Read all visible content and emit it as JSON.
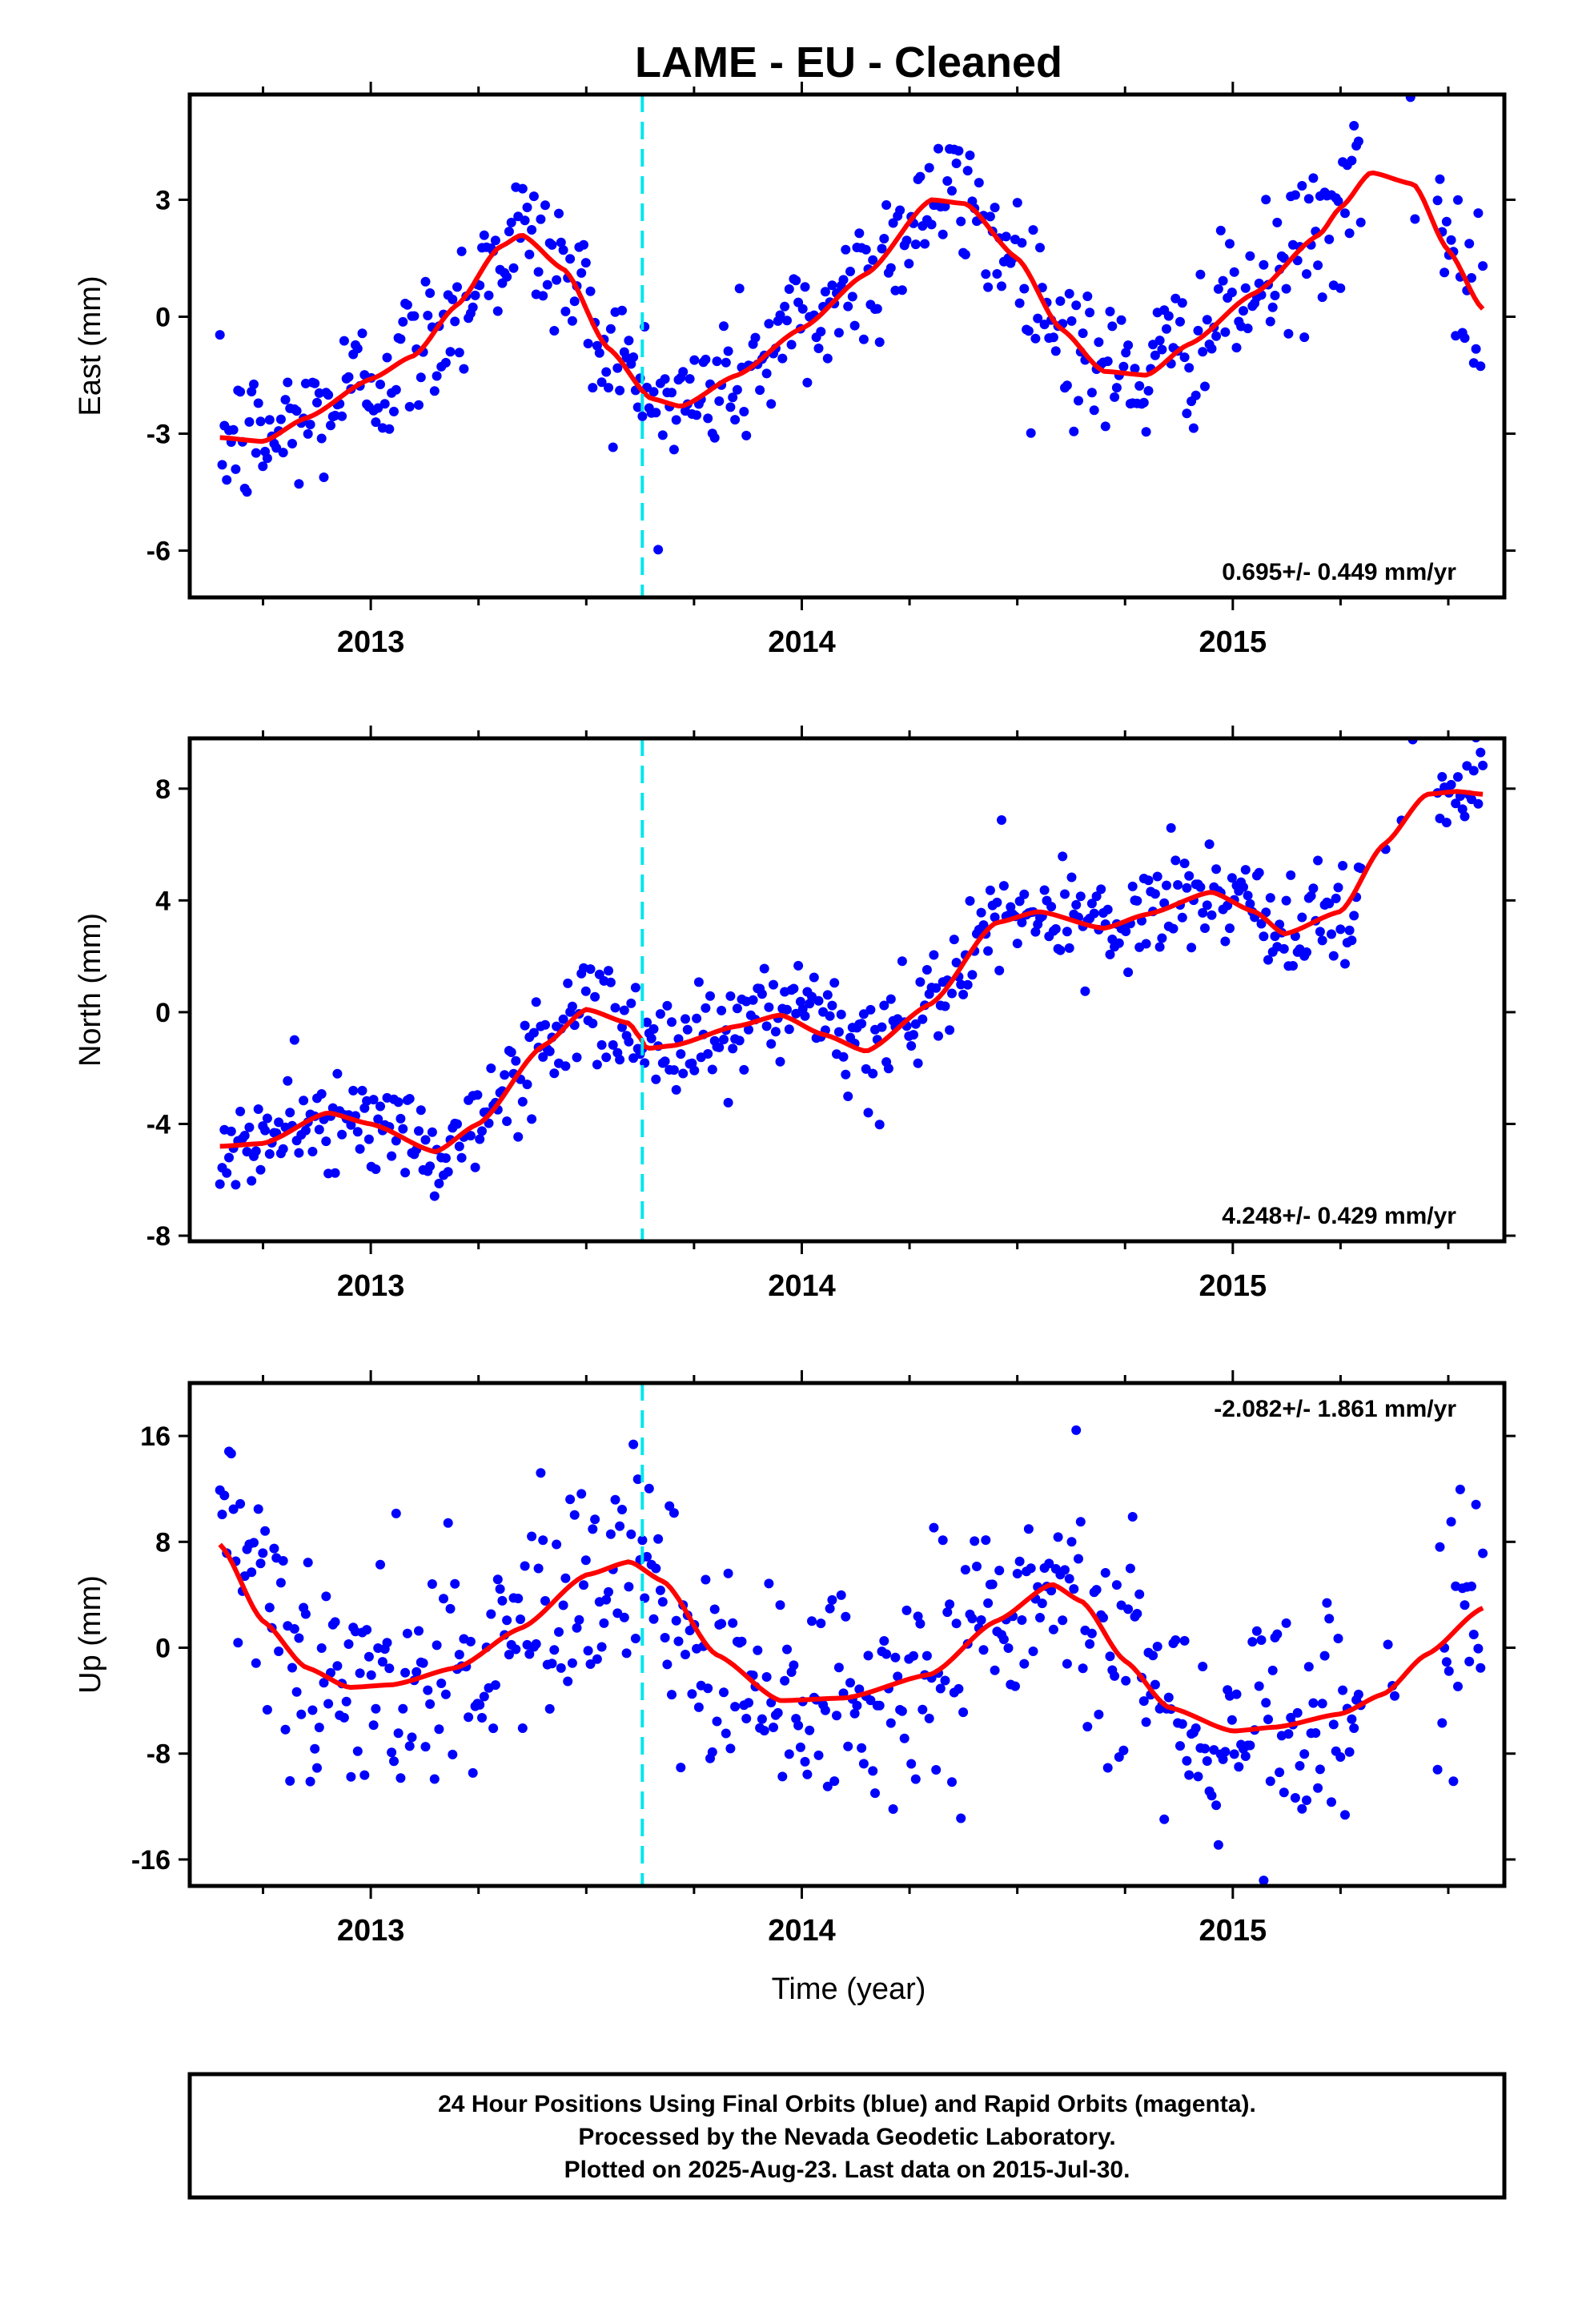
{
  "title": "LAME  - EU - Cleaned",
  "x_axis_label": "Time (year)",
  "footer": {
    "lines": [
      "24 Hour Positions Using Final Orbits (blue) and Rapid Orbits (magenta).",
      "Processed by the Nevada Geodetic Laboratory.",
      "Plotted on 2025-Aug-23. Last data on 2015-Jul-30."
    ]
  },
  "colors": {
    "points": "#0000ff",
    "fit_line": "#ff0000",
    "event_line": "#00e5ee",
    "frame": "#000000"
  },
  "chart_data": [
    {
      "type": "scatter",
      "name": "east",
      "ylabel": "East (mm)",
      "rate_label": "0.695+/- 0.449 mm/yr",
      "rate_position": "bottom-right",
      "xlim": [
        2012.58,
        2015.63
      ],
      "ylim": [
        -7.2,
        5.7
      ],
      "x_ticks": [
        2013,
        2014,
        2015
      ],
      "x_tick_labels": [
        "2013",
        "2014",
        "2015"
      ],
      "y_ticks": [
        -6,
        -3,
        0,
        3
      ],
      "y_tick_labels": [
        "-6",
        "-3",
        "0",
        "3"
      ],
      "event_year": 2013.63,
      "data_range": [
        2012.65,
        2015.58
      ],
      "fit": {
        "x": [
          2012.65,
          2012.75,
          2012.85,
          2013.0,
          2013.1,
          2013.2,
          2013.3,
          2013.35,
          2013.45,
          2013.55,
          2013.65,
          2013.72,
          2013.85,
          2014.0,
          2014.15,
          2014.3,
          2014.38,
          2014.5,
          2014.6,
          2014.7,
          2014.8,
          2014.9,
          2015.05,
          2015.2,
          2015.25,
          2015.32,
          2015.42,
          2015.5,
          2015.58
        ],
        "y": [
          -3.1,
          -3.2,
          -2.6,
          -1.6,
          -1.0,
          0.3,
          1.8,
          2.1,
          1.2,
          -0.8,
          -2.1,
          -2.3,
          -1.5,
          -0.3,
          1.1,
          3.0,
          2.9,
          1.5,
          -0.3,
          -1.4,
          -1.5,
          -0.7,
          0.6,
          2.1,
          2.8,
          3.7,
          3.4,
          1.7,
          0.2
        ]
      },
      "point_model": {
        "seasonal": 0,
        "noise": 0.95,
        "count": 560
      }
    },
    {
      "type": "scatter",
      "name": "north",
      "ylabel": "North (mm)",
      "rate_label": "4.248+/- 0.429 mm/yr",
      "rate_position": "bottom-right",
      "xlim": [
        2012.58,
        2015.63
      ],
      "ylim": [
        -8.2,
        9.8
      ],
      "x_ticks": [
        2013,
        2014,
        2015
      ],
      "x_tick_labels": [
        "2013",
        "2014",
        "2015"
      ],
      "y_ticks": [
        -8,
        -4,
        0,
        4,
        8
      ],
      "y_tick_labels": [
        "-8",
        "-4",
        "0",
        "4",
        "8"
      ],
      "event_year": 2013.63,
      "data_range": [
        2012.65,
        2015.58
      ],
      "fit": {
        "x": [
          2012.65,
          2012.75,
          2012.9,
          2013.0,
          2013.15,
          2013.25,
          2013.4,
          2013.5,
          2013.6,
          2013.62,
          2013.64,
          2013.7,
          2013.85,
          2013.95,
          2014.05,
          2014.15,
          2014.3,
          2014.45,
          2014.55,
          2014.7,
          2014.8,
          2014.95,
          2015.05,
          2015.12,
          2015.25,
          2015.35,
          2015.45,
          2015.52,
          2015.58
        ],
        "y": [
          -4.8,
          -4.7,
          -3.6,
          -4.0,
          -5.0,
          -4.0,
          -1.2,
          0.1,
          -0.4,
          -0.8,
          -1.3,
          -1.2,
          -0.5,
          -0.1,
          -0.8,
          -1.4,
          0.3,
          3.2,
          3.6,
          3.0,
          3.5,
          4.3,
          3.6,
          2.8,
          3.6,
          6.0,
          7.8,
          7.9,
          7.8
        ]
      },
      "point_model": {
        "seasonal": 0,
        "noise": 0.9,
        "count": 560
      }
    },
    {
      "type": "scatter",
      "name": "up",
      "ylabel": "Up (mm)",
      "rate_label": "-2.082+/- 1.861 mm/yr",
      "rate_position": "top-right",
      "xlim": [
        2012.58,
        2015.63
      ],
      "ylim": [
        -18,
        20
      ],
      "x_ticks": [
        2013,
        2014,
        2015
      ],
      "x_tick_labels": [
        "2013",
        "2014",
        "2015"
      ],
      "y_ticks": [
        -16,
        -8,
        0,
        8,
        16
      ],
      "y_tick_labels": [
        "-16",
        "-8",
        "0",
        "8",
        "16"
      ],
      "event_year": 2013.63,
      "data_range": [
        2012.65,
        2015.58
      ],
      "fit": {
        "x": [
          2012.65,
          2012.75,
          2012.85,
          2012.95,
          2013.05,
          2013.2,
          2013.35,
          2013.5,
          2013.6,
          2013.68,
          2013.8,
          2013.95,
          2014.1,
          2014.3,
          2014.45,
          2014.58,
          2014.65,
          2014.75,
          2014.85,
          2015.0,
          2015.1,
          2015.25,
          2015.35,
          2015.45,
          2015.58
        ],
        "y": [
          7.8,
          2.0,
          -1.5,
          -3.0,
          -2.8,
          -1.5,
          1.5,
          5.5,
          6.5,
          5.0,
          -0.5,
          -4.0,
          -3.8,
          -2.0,
          2.0,
          4.8,
          3.5,
          -1.0,
          -4.5,
          -6.3,
          -6.0,
          -5.0,
          -3.5,
          -0.5,
          3.0
        ]
      },
      "point_model": {
        "seasonal": 0,
        "noise": 4.3,
        "count": 560
      }
    }
  ]
}
